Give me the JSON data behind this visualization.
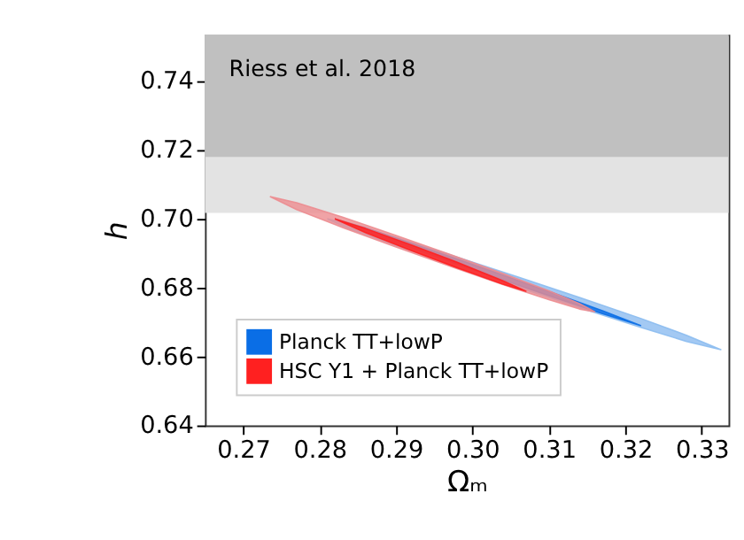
{
  "chart_data": {
    "type": "area",
    "xlabel": "Ωₘ",
    "ylabel": "h",
    "xlim": [
      0.265,
      0.3335
    ],
    "ylim": [
      0.64,
      0.7535
    ],
    "xticks": [
      0.27,
      0.28,
      0.29,
      {
        "value": 0.3,
        "label": "0.30"
      },
      0.31,
      0.32,
      0.33
    ],
    "yticks": [
      0.64,
      0.66,
      0.68,
      {
        "value": 0.7,
        "label": "0.70"
      },
      0.72,
      0.74
    ],
    "grid": false,
    "legend": "bottom left",
    "bands": [
      {
        "axis": "y",
        "from": 0.7017,
        "to": 0.7535,
        "color": "#e3e3e3"
      },
      {
        "axis": "y",
        "from": 0.718,
        "to": 0.7535,
        "color": "#c0c0c0",
        "label": "Riess et al. 2018"
      }
    ],
    "series": [
      {
        "color": "#8cbcf0",
        "x": [
          0.281,
          0.284,
          0.29,
          0.298,
          0.306,
          0.314,
          0.322,
          0.328,
          0.3325,
          0.328,
          0.322,
          0.314,
          0.306,
          0.298,
          0.29,
          0.284,
          0.281
        ],
        "values": [
          0.7,
          0.6986,
          0.6946,
          0.6889,
          0.6831,
          0.6772,
          0.6711,
          0.6662,
          0.662,
          0.6644,
          0.6685,
          0.6742,
          0.6801,
          0.6861,
          0.6922,
          0.697,
          0.7
        ]
      },
      {
        "name": "Planck TT+lowP",
        "color": "#0a6ee6",
        "x": [
          0.282,
          0.286,
          0.294,
          0.302,
          0.31,
          0.317,
          0.322,
          0.317,
          0.31,
          0.302,
          0.294,
          0.286,
          0.282
        ],
        "values": [
          0.7,
          0.6974,
          0.6914,
          0.6852,
          0.6789,
          0.6733,
          0.669,
          0.6725,
          0.6777,
          0.6838,
          0.69,
          0.6964,
          0.7
        ]
      },
      {
        "color": "#ec8c90",
        "x": [
          0.2735,
          0.277,
          0.283,
          0.29,
          0.297,
          0.304,
          0.31,
          0.314,
          0.316,
          0.314,
          0.31,
          0.304,
          0.297,
          0.29,
          0.283,
          0.277,
          0.2735
        ],
        "values": [
          0.7065,
          0.7047,
          0.7005,
          0.6952,
          0.6897,
          0.6841,
          0.6791,
          0.6754,
          0.673,
          0.6738,
          0.6765,
          0.6809,
          0.6863,
          0.6918,
          0.6975,
          0.7027,
          0.7065
        ]
      },
      {
        "name": "HSC Y1 + Planck TT+lowP",
        "color": "#ff2020",
        "x": [
          0.282,
          0.286,
          0.292,
          0.298,
          0.304,
          0.307,
          0.304,
          0.298,
          0.292,
          0.286,
          0.282
        ],
        "values": [
          0.7,
          0.6972,
          0.6924,
          0.6874,
          0.682,
          0.679,
          0.681,
          0.6858,
          0.6908,
          0.696,
          0.7
        ]
      }
    ]
  }
}
